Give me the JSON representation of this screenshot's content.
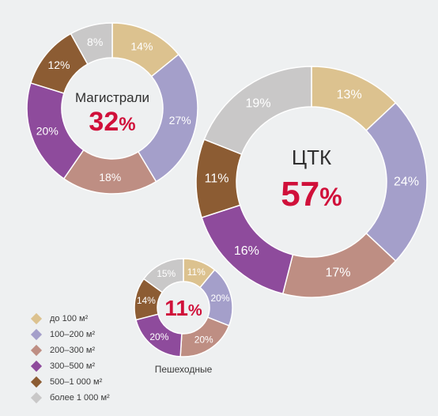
{
  "colors": {
    "background": "#eef0f1",
    "accent": "#d0103a"
  },
  "chart_data": [
    {
      "type": "pie",
      "variant": "donut",
      "id": "main",
      "center_label": "Магистрали",
      "center_value": "32",
      "center_unit": "%",
      "categories": [
        "до 100 м²",
        "100–200 м²",
        "200–300 м²",
        "300–500 м²",
        "500–1 000 м²",
        "более 1 000 м²"
      ],
      "values": [
        14,
        27,
        18,
        20,
        12,
        8
      ],
      "labels": [
        "14%",
        "27%",
        "18%",
        "20%",
        "12%",
        "8%"
      ]
    },
    {
      "type": "pie",
      "variant": "donut",
      "id": "tc",
      "center_label": "ЦТК",
      "center_value": "57",
      "center_unit": "%",
      "categories": [
        "до 100 м²",
        "100–200 м²",
        "200–300 м²",
        "300–500 м²",
        "500–1 000 м²",
        "более 1 000 м²"
      ],
      "values": [
        13,
        24,
        17,
        16,
        11,
        19
      ],
      "labels": [
        "13%",
        "24%",
        "17%",
        "16%",
        "11%",
        "19%"
      ]
    },
    {
      "type": "pie",
      "variant": "donut",
      "id": "ped",
      "center_label": "",
      "caption": "Пешеходные",
      "center_value": "11",
      "center_unit": "%",
      "categories": [
        "до 100 м²",
        "100–200 м²",
        "200–300 м²",
        "300–500 м²",
        "500–1 000 м²",
        "более 1 000 м²"
      ],
      "values": [
        11,
        20,
        20,
        20,
        14,
        15
      ],
      "labels": [
        "11%",
        "20%",
        "20%",
        "20%",
        "14%",
        "15%"
      ]
    }
  ],
  "legend": {
    "placement": "bottom-left",
    "items": [
      {
        "label": "до 100 м²",
        "color": "#dcc28f"
      },
      {
        "label": "100–200 м²",
        "color": "#a49fca"
      },
      {
        "label": "200–300 м²",
        "color": "#be8e83"
      },
      {
        "label": "300–500 м²",
        "color": "#8e4b9c"
      },
      {
        "label": "500–1 000 м²",
        "color": "#8c5c33"
      },
      {
        "label": "более 1 000 м²",
        "color": "#c9c8c8"
      }
    ]
  }
}
